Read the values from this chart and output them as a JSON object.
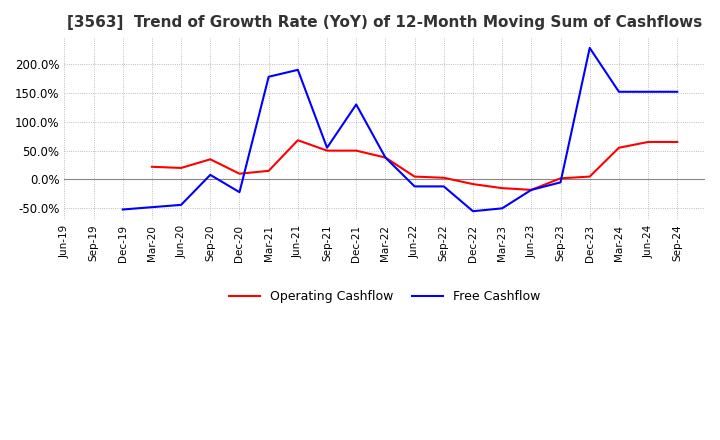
{
  "title": "[3563]  Trend of Growth Rate (YoY) of 12-Month Moving Sum of Cashflows",
  "legend_labels": [
    "Operating Cashflow",
    "Free Cashflow"
  ],
  "legend_colors": [
    "#ff0000",
    "#0000ff"
  ],
  "x_labels": [
    "Jun-19",
    "Sep-19",
    "Dec-19",
    "Mar-20",
    "Jun-20",
    "Sep-20",
    "Dec-20",
    "Mar-21",
    "Jun-21",
    "Sep-21",
    "Dec-21",
    "Mar-22",
    "Jun-22",
    "Sep-22",
    "Dec-22",
    "Mar-23",
    "Jun-23",
    "Sep-23",
    "Dec-23",
    "Mar-24",
    "Jun-24",
    "Sep-24"
  ],
  "operating_cashflow": [
    null,
    null,
    null,
    0.22,
    0.2,
    0.35,
    0.1,
    0.15,
    0.68,
    0.5,
    0.5,
    0.38,
    0.05,
    0.03,
    -0.08,
    -0.15,
    -0.18,
    0.02,
    0.05,
    0.55,
    0.65,
    0.65
  ],
  "free_cashflow": [
    null,
    null,
    -0.52,
    -0.48,
    -0.44,
    0.08,
    -0.22,
    1.78,
    1.9,
    0.55,
    1.3,
    0.38,
    -0.12,
    -0.12,
    -0.55,
    -0.5,
    -0.18,
    -0.05,
    2.28,
    1.52,
    1.52,
    1.52
  ],
  "yticks": [
    -0.5,
    0.0,
    0.5,
    1.0,
    1.5,
    2.0
  ],
  "ylim_min": -0.7,
  "ylim_max": 2.45,
  "bg_color": "#ffffff",
  "grid_color": "#aaaaaa",
  "zero_line_color": "#888888"
}
